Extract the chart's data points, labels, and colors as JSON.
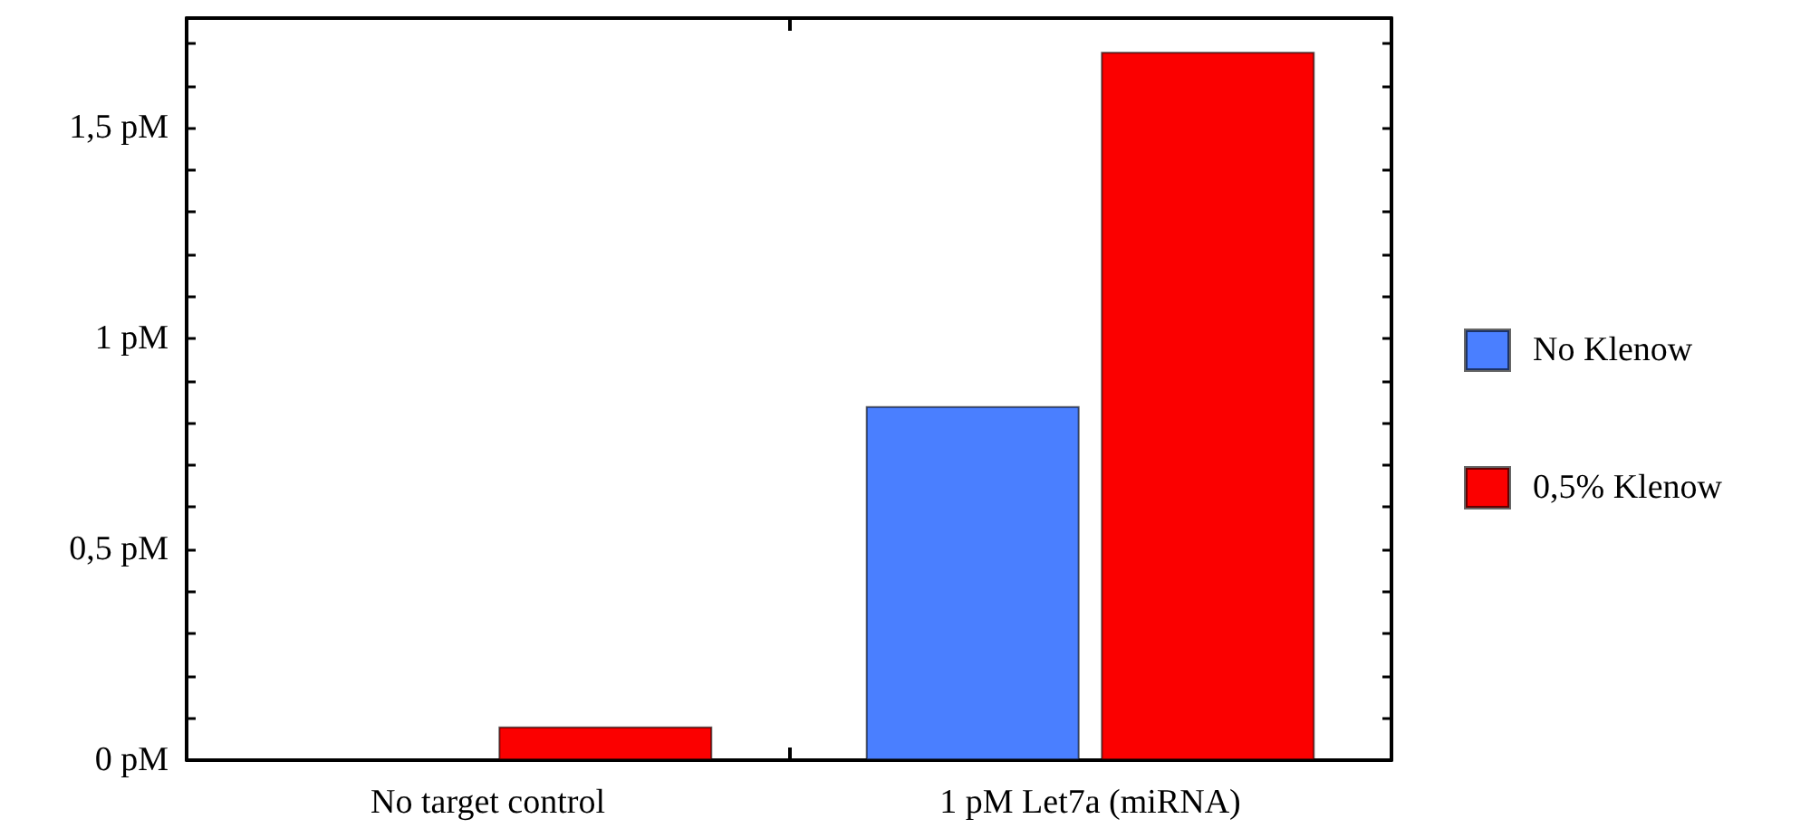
{
  "chart_data": {
    "type": "bar",
    "categories": [
      "No target control",
      "1 pM Let7a (miRNA)"
    ],
    "series": [
      {
        "name": "No Klenow",
        "color": "#4a7fff",
        "values": [
          null,
          0.84
        ]
      },
      {
        "name": "0,5% Klenow",
        "color": "#fb0000",
        "values": [
          0.08,
          1.68
        ]
      }
    ],
    "ylim": [
      0,
      1.76
    ],
    "yticks": [
      {
        "value": 0,
        "label": "0 pM"
      },
      {
        "value": 0.1,
        "label": null
      },
      {
        "value": 0.2,
        "label": null
      },
      {
        "value": 0.3,
        "label": null
      },
      {
        "value": 0.4,
        "label": null
      },
      {
        "value": 0.5,
        "label": "0,5 pM"
      },
      {
        "value": 0.6,
        "label": null
      },
      {
        "value": 0.7,
        "label": null
      },
      {
        "value": 0.8,
        "label": null
      },
      {
        "value": 0.9,
        "label": null
      },
      {
        "value": 1,
        "label": "1 pM"
      },
      {
        "value": 1.1,
        "label": null
      },
      {
        "value": 1.2,
        "label": null
      },
      {
        "value": 1.3,
        "label": null
      },
      {
        "value": 1.4,
        "label": null
      },
      {
        "value": 1.5,
        "label": "1,5 pM"
      },
      {
        "value": 1.6,
        "label": null
      },
      {
        "value": 1.7,
        "label": null
      }
    ],
    "grid": false,
    "legend": "right"
  }
}
